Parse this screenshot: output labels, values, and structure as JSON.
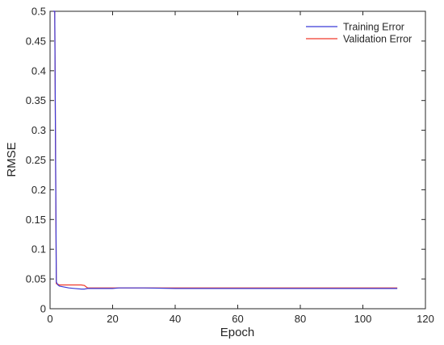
{
  "chart_data": {
    "type": "line",
    "title": "",
    "xlabel": "Epoch",
    "ylabel": "RMSE",
    "xlim": [
      0,
      120
    ],
    "ylim": [
      0,
      0.5
    ],
    "xticks": [
      0,
      20,
      40,
      60,
      80,
      100,
      120
    ],
    "yticks": [
      0,
      0.05,
      0.1,
      0.15,
      0.2,
      0.25,
      0.3,
      0.35,
      0.4,
      0.45,
      0.5
    ],
    "xtick_labels": [
      "0",
      "20",
      "40",
      "60",
      "80",
      "100",
      "120"
    ],
    "ytick_labels": [
      "0",
      "0.05",
      "0.1",
      "0.15",
      "0.2",
      "0.25",
      "0.3",
      "0.35",
      "0.4",
      "0.45",
      "0.5"
    ],
    "grid": false,
    "legend_position": "top-right",
    "series": [
      {
        "name": "Training Error",
        "color": "#3b3bd6",
        "x": [
          1,
          1.5,
          2,
          2.5,
          3,
          4,
          5,
          6,
          8,
          10,
          11,
          12,
          14,
          16,
          18,
          20,
          22,
          25,
          30,
          40,
          60,
          80,
          100,
          111
        ],
        "y": [
          0.5,
          0.5,
          0.045,
          0.04,
          0.038,
          0.037,
          0.036,
          0.035,
          0.034,
          0.033,
          0.033,
          0.034,
          0.034,
          0.034,
          0.034,
          0.034,
          0.035,
          0.035,
          0.035,
          0.034,
          0.034,
          0.034,
          0.034,
          0.034
        ]
      },
      {
        "name": "Validation Error",
        "color": "#f0392b",
        "x": [
          1,
          1.5,
          2,
          2.5,
          3,
          4,
          5,
          6,
          8,
          10,
          11,
          12,
          14,
          16,
          18,
          20,
          22,
          25,
          30,
          40,
          60,
          80,
          100,
          111
        ],
        "y": [
          0.5,
          0.5,
          0.042,
          0.041,
          0.04,
          0.04,
          0.04,
          0.04,
          0.04,
          0.04,
          0.039,
          0.035,
          0.035,
          0.035,
          0.035,
          0.035,
          0.035,
          0.035,
          0.035,
          0.035,
          0.035,
          0.035,
          0.035,
          0.035
        ]
      }
    ]
  }
}
